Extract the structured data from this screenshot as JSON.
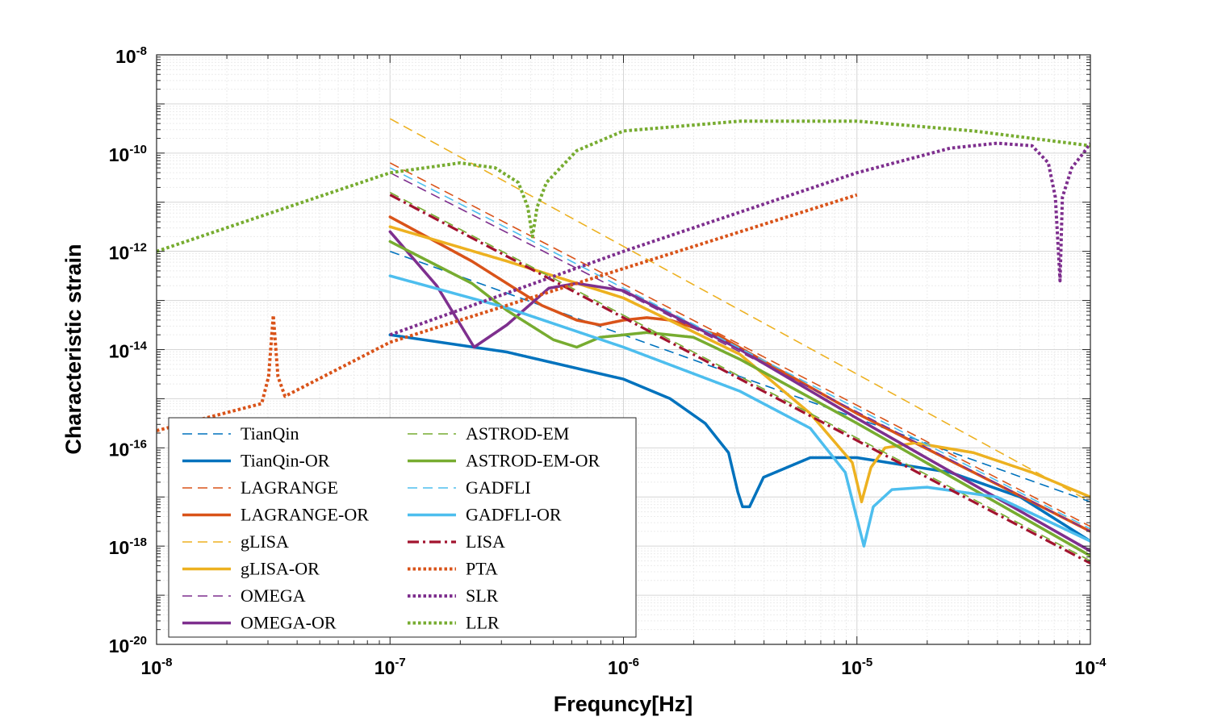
{
  "chart_data": {
    "type": "line",
    "xscale": "log",
    "yscale": "log",
    "xlabel": "Frequncy[Hz]",
    "ylabel": "Characteristic strain",
    "xlim": [
      1e-08,
      0.0001
    ],
    "ylim": [
      1e-20,
      1e-08
    ],
    "grid": true,
    "legend_position": "bottom-left",
    "x_ticks": [
      {
        "base": "10",
        "exp": "-8"
      },
      {
        "base": "10",
        "exp": "-7"
      },
      {
        "base": "10",
        "exp": "-6"
      },
      {
        "base": "10",
        "exp": "-5"
      },
      {
        "base": "10",
        "exp": "-4"
      }
    ],
    "y_ticks": [
      {
        "base": "10",
        "exp": "-20"
      },
      {
        "base": "10",
        "exp": "-18"
      },
      {
        "base": "10",
        "exp": "-16"
      },
      {
        "base": "10",
        "exp": "-14"
      },
      {
        "base": "10",
        "exp": "-12"
      },
      {
        "base": "10",
        "exp": "-10"
      },
      {
        "base": "10",
        "exp": "-8"
      }
    ],
    "series": [
      {
        "name": "TianQin",
        "color": "#0072BD",
        "style": "dashed",
        "points": [
          [
            -7,
            -12
          ],
          [
            -4,
            -17.1
          ]
        ]
      },
      {
        "name": "TianQin-OR",
        "color": "#0072BD",
        "style": "solid",
        "points": [
          [
            -7,
            -13.7
          ],
          [
            -6.5,
            -14.05
          ],
          [
            -6,
            -14.6
          ],
          [
            -5.8,
            -15.0
          ],
          [
            -5.65,
            -15.5
          ],
          [
            -5.55,
            -16.1
          ],
          [
            -5.51,
            -16.9
          ],
          [
            -5.49,
            -17.2
          ],
          [
            -5.46,
            -17.2
          ],
          [
            -5.4,
            -16.6
          ],
          [
            -5.2,
            -16.2
          ],
          [
            -5.0,
            -16.2
          ],
          [
            -4.6,
            -16.5
          ],
          [
            -4.3,
            -17.0
          ],
          [
            -4,
            -17.9
          ]
        ]
      },
      {
        "name": "LAGRANGE",
        "color": "#D95319",
        "style": "dashed",
        "points": [
          [
            -7,
            -10.2
          ],
          [
            -4,
            -17.6
          ]
        ]
      },
      {
        "name": "LAGRANGE-OR",
        "color": "#D95319",
        "style": "solid",
        "points": [
          [
            -7,
            -11.3
          ],
          [
            -6.65,
            -12.2
          ],
          [
            -6.45,
            -12.8
          ],
          [
            -6.35,
            -13.1
          ],
          [
            -6.2,
            -13.4
          ],
          [
            -6.1,
            -13.5
          ],
          [
            -6.0,
            -13.4
          ],
          [
            -5.9,
            -13.35
          ],
          [
            -5.8,
            -13.4
          ],
          [
            -5.6,
            -13.7
          ],
          [
            -5.0,
            -15.3
          ],
          [
            -4,
            -17.7
          ]
        ]
      },
      {
        "name": "gLISA",
        "color": "#EDB120",
        "style": "dashed",
        "points": [
          [
            -7,
            -9.3
          ],
          [
            -4,
            -17.1
          ]
        ]
      },
      {
        "name": "gLISA-OR",
        "color": "#EDB120",
        "style": "solid",
        "points": [
          [
            -7,
            -11.5
          ],
          [
            -6.5,
            -12.2
          ],
          [
            -6,
            -12.95
          ],
          [
            -5.5,
            -14.1
          ],
          [
            -5.2,
            -15.3
          ],
          [
            -5.02,
            -16.3
          ],
          [
            -4.98,
            -17.1
          ],
          [
            -4.94,
            -16.4
          ],
          [
            -4.88,
            -16.0
          ],
          [
            -4.75,
            -15.9
          ],
          [
            -4.5,
            -16.1
          ],
          [
            -4.25,
            -16.5
          ],
          [
            -4,
            -17.0
          ]
        ]
      },
      {
        "name": "OMEGA",
        "color": "#7E2F8E",
        "style": "dashed",
        "points": [
          [
            -7,
            -10.4
          ],
          [
            -4,
            -17.7
          ]
        ]
      },
      {
        "name": "OMEGA-OR",
        "color": "#7E2F8E",
        "style": "solid",
        "points": [
          [
            -7,
            -11.6
          ],
          [
            -6.8,
            -12.7
          ],
          [
            -6.64,
            -13.95
          ],
          [
            -6.5,
            -13.5
          ],
          [
            -6.32,
            -12.75
          ],
          [
            -6.2,
            -12.65
          ],
          [
            -6.0,
            -12.8
          ],
          [
            -5.5,
            -14.0
          ],
          [
            -5,
            -15.4
          ],
          [
            -4,
            -18.1
          ]
        ]
      },
      {
        "name": "ASTROD-EM",
        "color": "#77AC30",
        "style": "dashed",
        "points": [
          [
            -7,
            -10.8
          ],
          [
            -4,
            -18.3
          ]
        ]
      },
      {
        "name": "ASTROD-EM-OR",
        "color": "#77AC30",
        "style": "solid",
        "points": [
          [
            -7,
            -11.8
          ],
          [
            -6.65,
            -12.65
          ],
          [
            -6.5,
            -13.2
          ],
          [
            -6.3,
            -13.8
          ],
          [
            -6.2,
            -13.95
          ],
          [
            -6.1,
            -13.75
          ],
          [
            -5.9,
            -13.65
          ],
          [
            -5.7,
            -13.75
          ],
          [
            -5.5,
            -14.2
          ],
          [
            -5,
            -15.5
          ],
          [
            -4,
            -18.2
          ]
        ]
      },
      {
        "name": "GADFLI",
        "color": "#4DBEEE",
        "style": "dashed",
        "points": [
          [
            -7,
            -10.3
          ],
          [
            -4,
            -17.65
          ]
        ]
      },
      {
        "name": "GADFLI-OR",
        "color": "#4DBEEE",
        "style": "solid",
        "points": [
          [
            -7,
            -12.5
          ],
          [
            -6.5,
            -13.15
          ],
          [
            -6,
            -13.95
          ],
          [
            -5.5,
            -14.85
          ],
          [
            -5.2,
            -15.6
          ],
          [
            -5.05,
            -16.5
          ],
          [
            -4.97,
            -18.0
          ],
          [
            -4.93,
            -17.2
          ],
          [
            -4.85,
            -16.85
          ],
          [
            -4.7,
            -16.8
          ],
          [
            -4.4,
            -17.0
          ],
          [
            -4,
            -17.9
          ]
        ]
      },
      {
        "name": "LISA",
        "color": "#A2142F",
        "style": "dashdot",
        "points": [
          [
            -7,
            -10.85
          ],
          [
            -4,
            -18.35
          ]
        ]
      },
      {
        "name": "PTA",
        "color": "#D95319",
        "style": "dotted",
        "points": [
          [
            -8,
            -15.65
          ],
          [
            -7.55,
            -15.1
          ],
          [
            -7.52,
            -14.55
          ],
          [
            -7.5,
            -13.3
          ],
          [
            -7.48,
            -14.55
          ],
          [
            -7.45,
            -14.95
          ],
          [
            -7,
            -13.85
          ],
          [
            -5,
            -10.85
          ]
        ]
      },
      {
        "name": "SLR",
        "color": "#7E2F8E",
        "style": "dotted",
        "points": [
          [
            -7,
            -13.7
          ],
          [
            -6,
            -12.0
          ],
          [
            -5,
            -10.4
          ],
          [
            -4.6,
            -9.9
          ],
          [
            -4.4,
            -9.8
          ],
          [
            -4.25,
            -9.85
          ],
          [
            -4.18,
            -10.2
          ],
          [
            -4.15,
            -10.9
          ],
          [
            -4.13,
            -12.6
          ],
          [
            -4.12,
            -10.9
          ],
          [
            -4.08,
            -10.3
          ],
          [
            -4.03,
            -10.0
          ],
          [
            -4,
            -9.8
          ]
        ]
      },
      {
        "name": "LLR",
        "color": "#77AC30",
        "style": "dotted",
        "points": [
          [
            -8,
            -12.0
          ],
          [
            -7,
            -10.4
          ],
          [
            -6.7,
            -10.2
          ],
          [
            -6.55,
            -10.3
          ],
          [
            -6.45,
            -10.6
          ],
          [
            -6.41,
            -11.1
          ],
          [
            -6.39,
            -11.7
          ],
          [
            -6.37,
            -11.1
          ],
          [
            -6.33,
            -10.6
          ],
          [
            -6.2,
            -9.95
          ],
          [
            -6.0,
            -9.55
          ],
          [
            -5.5,
            -9.35
          ],
          [
            -5.0,
            -9.35
          ],
          [
            -4.5,
            -9.55
          ],
          [
            -4,
            -9.85
          ]
        ]
      }
    ]
  }
}
